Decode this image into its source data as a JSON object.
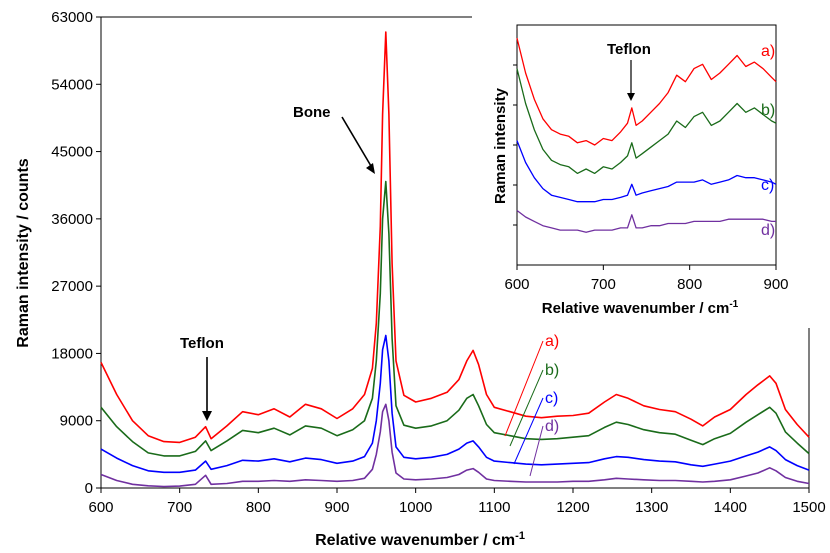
{
  "chart_data": {
    "type": "line",
    "xlabel": "Relative wavenumber / cm",
    "xlabel_sup": "-1",
    "ylabel": "Raman intensity / counts",
    "xlim": [
      600,
      1500
    ],
    "ylim": [
      0,
      63000
    ],
    "x_ticks": [
      "600",
      "700",
      "800",
      "900",
      "1000",
      "1100",
      "1200",
      "1300",
      "1400",
      "1500"
    ],
    "y_ticks": [
      "0",
      "9000",
      "18000",
      "27000",
      "36000",
      "45000",
      "54000",
      "63000"
    ],
    "grid": false,
    "annotations": [
      {
        "text": "Bone",
        "x": 962
      },
      {
        "text": "Teflon",
        "x": 733
      }
    ],
    "series": [
      {
        "name": "a)",
        "color": "#ff0000",
        "x": [
          600,
          620,
          640,
          660,
          680,
          700,
          720,
          733,
          740,
          760,
          780,
          800,
          820,
          840,
          860,
          880,
          900,
          920,
          935,
          945,
          950,
          955,
          958,
          962,
          966,
          970,
          975,
          985,
          1000,
          1020,
          1040,
          1055,
          1065,
          1073,
          1080,
          1090,
          1100,
          1120,
          1140,
          1160,
          1180,
          1200,
          1220,
          1240,
          1255,
          1270,
          1290,
          1310,
          1330,
          1350,
          1365,
          1380,
          1400,
          1420,
          1435,
          1450,
          1458,
          1470,
          1485,
          1500
        ],
        "y": [
          16800,
          12500,
          9000,
          7000,
          6200,
          6100,
          6800,
          8200,
          6600,
          8300,
          10200,
          9800,
          10600,
          9500,
          11200,
          10600,
          9300,
          10600,
          12500,
          16000,
          22000,
          35000,
          50000,
          61000,
          50000,
          30000,
          17000,
          12400,
          11500,
          12000,
          12800,
          14500,
          17000,
          18400,
          16500,
          12500,
          10800,
          10200,
          9600,
          9400,
          9600,
          9700,
          10000,
          11500,
          12500,
          12000,
          11000,
          10500,
          10200,
          9200,
          8300,
          9500,
          10500,
          12500,
          13800,
          15000,
          14000,
          10500,
          8500,
          6800
        ]
      },
      {
        "name": "b)",
        "color": "#1a6b1a",
        "x": [
          600,
          620,
          640,
          660,
          680,
          700,
          720,
          733,
          740,
          760,
          780,
          800,
          820,
          840,
          860,
          880,
          900,
          920,
          935,
          945,
          950,
          955,
          958,
          962,
          966,
          970,
          975,
          985,
          1000,
          1020,
          1040,
          1055,
          1065,
          1073,
          1080,
          1090,
          1100,
          1120,
          1140,
          1160,
          1180,
          1200,
          1220,
          1240,
          1255,
          1270,
          1290,
          1310,
          1330,
          1350,
          1365,
          1380,
          1400,
          1420,
          1435,
          1450,
          1458,
          1470,
          1485,
          1500
        ],
        "y": [
          10800,
          8200,
          6200,
          4700,
          4300,
          4300,
          4900,
          6300,
          5000,
          6300,
          7700,
          7400,
          8000,
          7100,
          8300,
          8000,
          7000,
          7800,
          9000,
          12000,
          17000,
          26000,
          36000,
          41000,
          34000,
          20000,
          11000,
          8400,
          8000,
          8300,
          9000,
          10400,
          12000,
          12500,
          11000,
          8500,
          7400,
          7000,
          6600,
          6500,
          6600,
          6800,
          7000,
          8100,
          8800,
          8500,
          7800,
          7400,
          7200,
          6400,
          5800,
          6600,
          7300,
          8800,
          9800,
          10800,
          10000,
          7500,
          6000,
          4600
        ]
      },
      {
        "name": "c)",
        "color": "#0000ff",
        "x": [
          600,
          620,
          640,
          660,
          680,
          700,
          720,
          733,
          740,
          760,
          780,
          800,
          820,
          840,
          860,
          880,
          900,
          920,
          935,
          945,
          950,
          955,
          958,
          962,
          966,
          970,
          975,
          985,
          1000,
          1020,
          1040,
          1055,
          1065,
          1073,
          1080,
          1090,
          1100,
          1120,
          1140,
          1160,
          1180,
          1200,
          1220,
          1240,
          1255,
          1270,
          1290,
          1310,
          1330,
          1350,
          1365,
          1380,
          1400,
          1420,
          1435,
          1450,
          1458,
          1470,
          1485,
          1500
        ],
        "y": [
          5200,
          4000,
          3000,
          2300,
          2100,
          2100,
          2400,
          3600,
          2500,
          3000,
          3700,
          3600,
          3900,
          3500,
          4000,
          3800,
          3300,
          3600,
          4200,
          6000,
          9000,
          14000,
          18500,
          20400,
          17000,
          10000,
          5500,
          4100,
          3900,
          4100,
          4500,
          5200,
          6000,
          6300,
          5500,
          4100,
          3600,
          3400,
          3200,
          3100,
          3200,
          3300,
          3400,
          3900,
          4200,
          4100,
          3800,
          3600,
          3500,
          3100,
          2900,
          3200,
          3600,
          4300,
          4800,
          5500,
          5000,
          3800,
          3000,
          2400
        ]
      },
      {
        "name": "d)",
        "color": "#7030a0",
        "x": [
          600,
          620,
          640,
          660,
          680,
          700,
          720,
          733,
          740,
          760,
          780,
          800,
          820,
          840,
          860,
          880,
          900,
          920,
          935,
          945,
          950,
          955,
          958,
          962,
          966,
          970,
          975,
          985,
          1000,
          1020,
          1040,
          1055,
          1065,
          1073,
          1080,
          1090,
          1100,
          1120,
          1140,
          1160,
          1180,
          1200,
          1220,
          1240,
          1255,
          1270,
          1290,
          1310,
          1330,
          1350,
          1365,
          1380,
          1400,
          1420,
          1435,
          1450,
          1458,
          1470,
          1485,
          1500
        ],
        "y": [
          1800,
          1000,
          500,
          300,
          200,
          250,
          500,
          1700,
          500,
          600,
          900,
          900,
          1000,
          900,
          1100,
          1000,
          900,
          1000,
          1300,
          2500,
          4500,
          7500,
          10200,
          11200,
          9000,
          4800,
          2000,
          1200,
          1100,
          1200,
          1400,
          1800,
          2400,
          2600,
          2100,
          1200,
          1000,
          900,
          800,
          800,
          800,
          900,
          900,
          1100,
          1300,
          1200,
          1100,
          1000,
          1000,
          900,
          800,
          900,
          1100,
          1600,
          2000,
          2700,
          2300,
          1400,
          900,
          600
        ]
      }
    ],
    "inset": {
      "xlabel": "Relative wavenumber / cm",
      "xlabel_sup": "-1",
      "ylabel": "Raman intensity",
      "xlim": [
        600,
        900
      ],
      "x_ticks": [
        "600",
        "700",
        "800",
        "900"
      ],
      "annotation": "Teflon",
      "series": [
        {
          "name": "a)",
          "color": "#ff0000",
          "x": [
            600,
            610,
            620,
            630,
            640,
            650,
            660,
            670,
            680,
            690,
            700,
            710,
            720,
            728,
            733,
            738,
            745,
            755,
            765,
            775,
            785,
            795,
            805,
            815,
            825,
            835,
            845,
            855,
            865,
            875,
            885,
            895,
            900
          ],
          "y": [
            104,
            88,
            76,
            67,
            62,
            60,
            59,
            56,
            57,
            55,
            58,
            57,
            61,
            65,
            72,
            64,
            66,
            70,
            74,
            79,
            87,
            84,
            90,
            92,
            85,
            88,
            92,
            96,
            91,
            93,
            90,
            86,
            84
          ]
        },
        {
          "name": "b)",
          "color": "#1a6b1a",
          "x": [
            600,
            610,
            620,
            630,
            640,
            650,
            660,
            670,
            680,
            690,
            700,
            710,
            720,
            728,
            733,
            738,
            745,
            755,
            765,
            775,
            785,
            795,
            805,
            815,
            825,
            835,
            845,
            855,
            865,
            875,
            885,
            895,
            900
          ],
          "y": [
            90,
            74,
            62,
            53,
            48,
            46,
            45,
            42,
            44,
            42,
            45,
            44,
            47,
            50,
            56,
            49,
            51,
            54,
            57,
            60,
            66,
            63,
            68,
            70,
            64,
            66,
            70,
            74,
            70,
            72,
            69,
            66,
            65
          ]
        },
        {
          "name": "c)",
          "color": "#0000ff",
          "x": [
            600,
            610,
            620,
            630,
            640,
            650,
            660,
            670,
            680,
            690,
            700,
            710,
            720,
            728,
            733,
            738,
            745,
            755,
            765,
            775,
            785,
            795,
            805,
            815,
            825,
            835,
            845,
            855,
            865,
            875,
            885,
            895,
            900
          ],
          "y": [
            57,
            47,
            40,
            35,
            32,
            31,
            30,
            29,
            29,
            29,
            30,
            30,
            31,
            32,
            37,
            32,
            33,
            34,
            35,
            36,
            38,
            38,
            38,
            39,
            37,
            38,
            39,
            41,
            40,
            40,
            39,
            38,
            37
          ]
        },
        {
          "name": "d)",
          "color": "#7030a0",
          "x": [
            600,
            610,
            620,
            630,
            640,
            650,
            660,
            670,
            680,
            690,
            700,
            710,
            720,
            728,
            733,
            738,
            745,
            755,
            765,
            775,
            785,
            795,
            805,
            815,
            825,
            835,
            845,
            855,
            865,
            875,
            885,
            895,
            900
          ],
          "y": [
            25,
            22,
            20,
            18,
            17,
            16,
            16,
            16,
            15,
            16,
            16,
            16,
            17,
            17,
            23,
            17,
            17,
            18,
            18,
            19,
            19,
            19,
            20,
            20,
            20,
            20,
            21,
            21,
            21,
            21,
            21,
            20,
            20
          ]
        }
      ]
    }
  }
}
